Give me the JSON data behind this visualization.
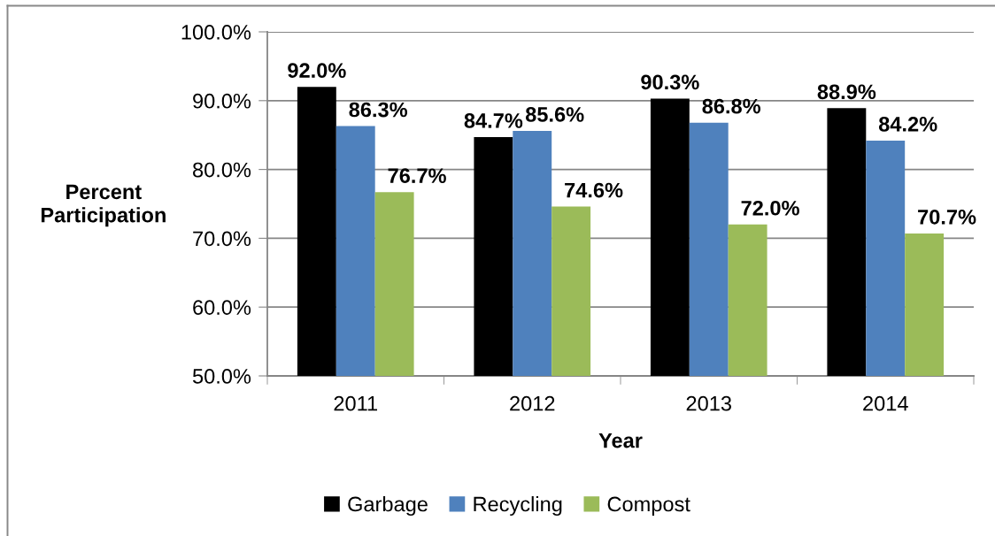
{
  "chart_data": {
    "type": "bar",
    "categories": [
      "2011",
      "2012",
      "2013",
      "2014"
    ],
    "series": [
      {
        "name": "Garbage",
        "color": "#000000",
        "values": [
          92.0,
          84.7,
          90.3,
          88.9
        ],
        "value_labels": [
          "92.0%",
          "84.7%",
          "90.3%",
          "88.9%"
        ]
      },
      {
        "name": "Recycling",
        "color": "#4f81bd",
        "values": [
          86.3,
          85.6,
          86.8,
          84.2
        ],
        "value_labels": [
          "86.3%",
          "85.6%",
          "86.8%",
          "84.2%"
        ]
      },
      {
        "name": "Compost",
        "color": "#9bbb59",
        "values": [
          76.7,
          74.6,
          72.0,
          70.7
        ],
        "value_labels": [
          "76.7%",
          "74.6%",
          "72.0%",
          "70.7%"
        ]
      }
    ],
    "xlabel": "Year",
    "ylabel": "Percent\nParticipation",
    "ylim": [
      50,
      100
    ],
    "yticks": [
      {
        "value": 50,
        "label": "50.0%"
      },
      {
        "value": 60,
        "label": "60.0%"
      },
      {
        "value": 70,
        "label": "70.0%"
      },
      {
        "value": 80,
        "label": "80.0%"
      },
      {
        "value": 90,
        "label": "90.0%"
      },
      {
        "value": 100,
        "label": "100.0%"
      }
    ],
    "grid": "y",
    "legend": "bottom"
  }
}
